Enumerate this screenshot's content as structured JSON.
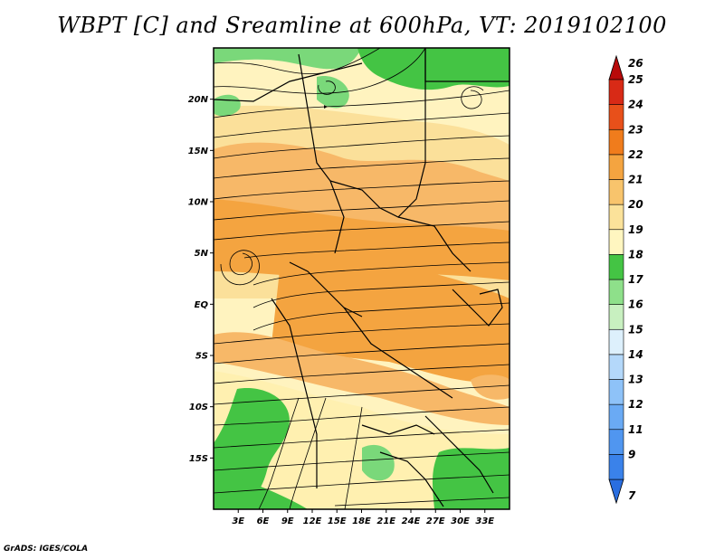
{
  "title": "WBPT [C] and Sreamline at 600hPa, VT: 2019102100",
  "footer": "GrADS: IGES/COLA",
  "map": {
    "lon_range": [
      0,
      36
    ],
    "lat_range": [
      -20,
      25
    ],
    "lat_ticks": [
      {
        "value": 20,
        "label": "20N"
      },
      {
        "value": 15,
        "label": "15N"
      },
      {
        "value": 10,
        "label": "10N"
      },
      {
        "value": 5,
        "label": "5N"
      },
      {
        "value": 0,
        "label": "EQ"
      },
      {
        "value": -5,
        "label": "5S"
      },
      {
        "value": -10,
        "label": "10S"
      },
      {
        "value": -15,
        "label": "15S"
      }
    ],
    "lon_ticks": [
      {
        "value": 3,
        "label": "3E"
      },
      {
        "value": 6,
        "label": "6E"
      },
      {
        "value": 9,
        "label": "9E"
      },
      {
        "value": 12,
        "label": "12E"
      },
      {
        "value": 15,
        "label": "15E"
      },
      {
        "value": 18,
        "label": "18E"
      },
      {
        "value": 21,
        "label": "21E"
      },
      {
        "value": 24,
        "label": "24E"
      },
      {
        "value": 27,
        "label": "27E"
      },
      {
        "value": 30,
        "label": "30E"
      },
      {
        "value": 33,
        "label": "33E"
      }
    ]
  },
  "colorbar": {
    "labels": [
      "7",
      "9",
      "11",
      "12",
      "13",
      "14",
      "15",
      "16",
      "17",
      "18",
      "19",
      "20",
      "21",
      "22",
      "23",
      "24",
      "25",
      "26"
    ],
    "colors": [
      "#2a6ee0",
      "#3a82ea",
      "#5096f0",
      "#6aaaf4",
      "#8ec2f8",
      "#b4d8fa",
      "#ddf0fc",
      "#c8f0c0",
      "#8ee08a",
      "#44c444",
      "#fff6c0",
      "#fbe29a",
      "#f8c46c",
      "#f4a440",
      "#f07c1c",
      "#e8501a",
      "#d82a16",
      "#b80a0a"
    ]
  }
}
